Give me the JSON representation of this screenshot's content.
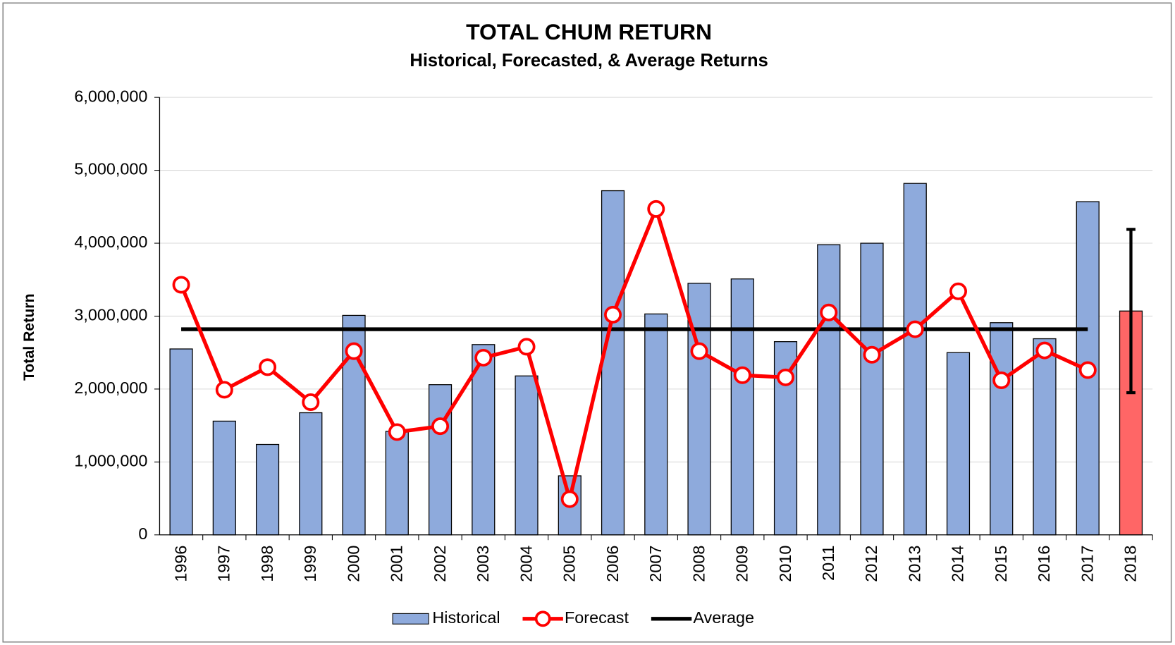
{
  "chart_data": {
    "type": "bar",
    "title": "TOTAL CHUM RETURN",
    "subtitle": "Historical, Forecasted, & Average Returns",
    "y_label": "Total Return",
    "categories": [
      "1996",
      "1997",
      "1998",
      "1999",
      "2000",
      "2001",
      "2002",
      "2003",
      "2004",
      "2005",
      "2006",
      "2007",
      "2008",
      "2009",
      "2010",
      "2011",
      "2012",
      "2013",
      "2014",
      "2015",
      "2016",
      "2017",
      "2018"
    ],
    "ylim": [
      0,
      6000000
    ],
    "yticks": [
      0,
      {
        "value": 1000000,
        "label": "1,000,000"
      },
      {
        "value": 2000000,
        "label": "2,000,000"
      },
      {
        "value": 3000000,
        "label": "3,000,000"
      },
      {
        "value": 4000000,
        "label": "4,000,000"
      },
      {
        "value": 5000000,
        "label": "5,000,000"
      },
      {
        "value": 6000000,
        "label": "6,000,000"
      }
    ],
    "grid": true,
    "legend": "bottom",
    "series": [
      {
        "name": "Historical",
        "kind": "bar",
        "color": "#8eaadc",
        "bar_colors": [
          "#8eaadc",
          "#8eaadc",
          "#8eaadc",
          "#8eaadc",
          "#8eaadc",
          "#8eaadc",
          "#8eaadc",
          "#8eaadc",
          "#8eaadc",
          "#8eaadc",
          "#8eaadc",
          "#8eaadc",
          "#8eaadc",
          "#8eaadc",
          "#8eaadc",
          "#8eaadc",
          "#8eaadc",
          "#8eaadc",
          "#8eaadc",
          "#8eaadc",
          "#8eaadc",
          "#8eaadc",
          "#ff6666"
        ],
        "values": [
          2550000,
          1560000,
          1240000,
          1675000,
          3010000,
          1420000,
          2060000,
          2610000,
          2180000,
          810000,
          4720000,
          3030000,
          3450000,
          3510000,
          2650000,
          3980000,
          4000000,
          4820000,
          2500000,
          2910000,
          2690000,
          4570000,
          3070000
        ],
        "errors": [
          null,
          null,
          null,
          null,
          null,
          null,
          null,
          null,
          null,
          null,
          null,
          null,
          null,
          null,
          null,
          null,
          null,
          null,
          null,
          null,
          null,
          null,
          1120000
        ]
      },
      {
        "name": "Forecast",
        "kind": "line-marker",
        "color": "#ff0000",
        "values": [
          3430000,
          1990000,
          2300000,
          1820000,
          2520000,
          1410000,
          1490000,
          2430000,
          2580000,
          490000,
          3020000,
          4470000,
          2520000,
          2190000,
          2160000,
          3050000,
          2470000,
          2820000,
          3340000,
          2120000,
          2530000,
          2260000,
          null
        ]
      },
      {
        "name": "Average",
        "kind": "line",
        "color": "#000000",
        "values": [
          2820000,
          2820000,
          2820000,
          2820000,
          2820000,
          2820000,
          2820000,
          2820000,
          2820000,
          2820000,
          2820000,
          2820000,
          2820000,
          2820000,
          2820000,
          2820000,
          2820000,
          2820000,
          2820000,
          2820000,
          2820000,
          2820000,
          null
        ]
      }
    ]
  }
}
